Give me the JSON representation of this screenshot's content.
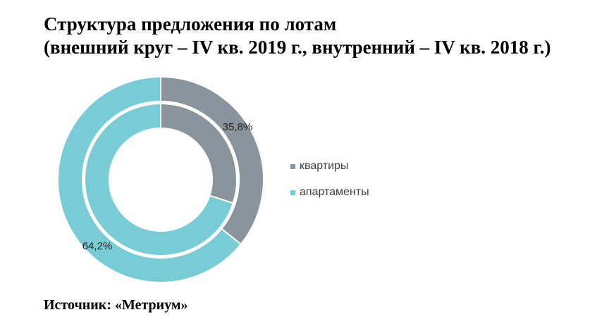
{
  "title": {
    "line1": "Структура предложения по лотам",
    "line2": "(внешний круг – IV кв. 2019 г., внутренний – IV кв. 2018 г.)"
  },
  "source": "Источник: «Метриум»",
  "colors": {
    "kvartiry": "#8a949c",
    "apartamenty": "#77ccd6"
  },
  "chart_data": {
    "type": "pie",
    "variant": "nested-donut",
    "title": "Структура предложения по лотам (внешний круг – IV кв. 2019 г., внутренний – IV кв. 2018 г.)",
    "categories": [
      "квартиры",
      "апартаменты"
    ],
    "series": [
      {
        "name": "IV кв. 2019 г.",
        "ring": "outer",
        "values": [
          35.8,
          64.2
        ],
        "labels": [
          "35,8%",
          "64,2%"
        ]
      },
      {
        "name": "IV кв. 2018 г.",
        "ring": "inner",
        "values": [
          30.0,
          70.0
        ],
        "labels": [
          "",
          ""
        ]
      }
    ],
    "legend_position": "right"
  }
}
